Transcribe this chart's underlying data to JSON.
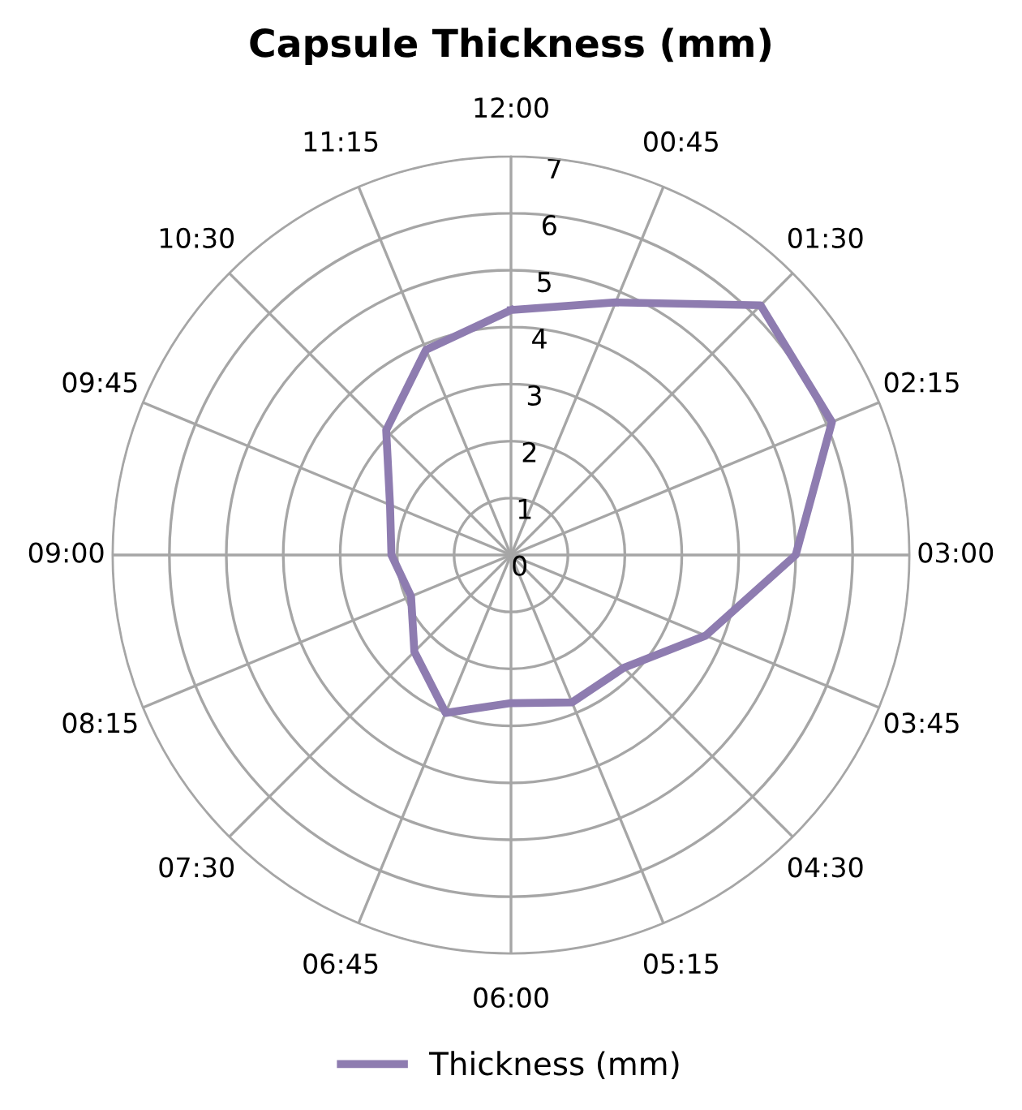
{
  "chart_data": {
    "type": "radar",
    "title": "Capsule Thickness (mm)",
    "categories": [
      "12:00",
      "00:45",
      "01:30",
      "02:15",
      "03:00",
      "03:45",
      "04:30",
      "05:15",
      "06:00",
      "06:45",
      "07:30",
      "08:15",
      "09:00",
      "09:45",
      "10:30",
      "11:15"
    ],
    "series": [
      {
        "name": "Thickness (mm)",
        "color": "#8e7cb0",
        "values": [
          4.3,
          4.8,
          6.2,
          6.1,
          5.0,
          3.7,
          2.8,
          2.8,
          2.6,
          3.0,
          2.4,
          1.9,
          2.1,
          2.3,
          3.1,
          3.9
        ]
      }
    ],
    "ylim": [
      0,
      7
    ],
    "yticks": [
      0,
      1,
      2,
      3,
      4,
      5,
      6,
      7
    ],
    "grid": true,
    "legend": "bottom",
    "marker": "none",
    "line_style": "solid"
  }
}
